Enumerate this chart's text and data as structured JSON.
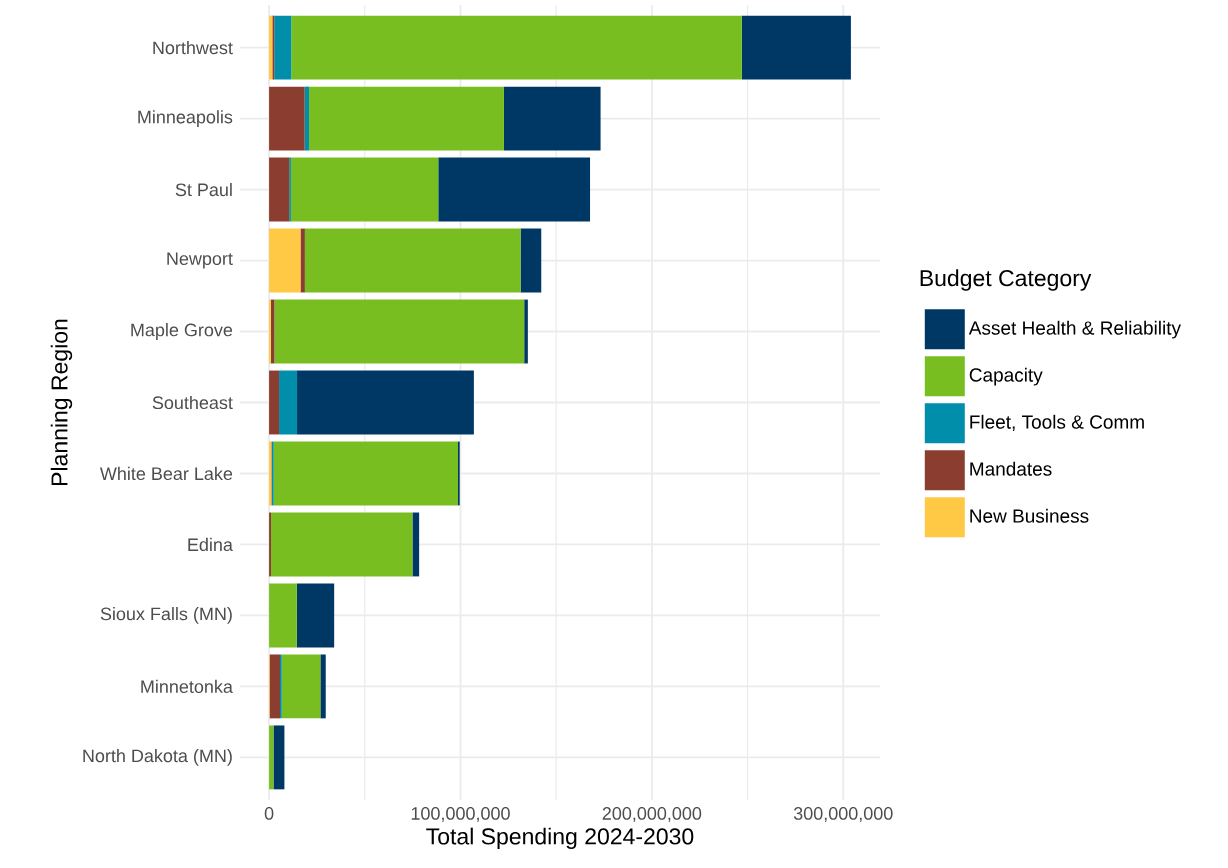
{
  "chart_data": {
    "type": "bar",
    "orientation": "horizontal",
    "stacked": true,
    "xlabel": "Total Spending 2024-2030",
    "ylabel": "Planning Region",
    "legend_title": "Budget Category",
    "categories": [
      "Northwest",
      "Minneapolis",
      "St Paul",
      "Newport",
      "Maple Grove",
      "Southeast",
      "White Bear Lake",
      "Edina",
      "Sioux Falls (MN)",
      "Minnetonka",
      "North Dakota (MN)"
    ],
    "series": [
      {
        "name": "New Business",
        "color": "#ffc845",
        "values": [
          1700000,
          0,
          0,
          16400000,
          900000,
          0,
          1200000,
          0,
          0,
          300000,
          0
        ]
      },
      {
        "name": "Mandates",
        "color": "#8b3e2f",
        "values": [
          1000000,
          18600000,
          10500000,
          2300000,
          1900000,
          5200000,
          300000,
          1000000,
          0,
          5400000,
          0
        ]
      },
      {
        "name": "Fleet, Tools & Comm",
        "color": "#008eaa",
        "values": [
          8900000,
          2300000,
          900000,
          null,
          null,
          9400000,
          900000,
          0,
          0,
          900000,
          0
        ]
      },
      {
        "name": "Capacity",
        "color": "#78be21",
        "values": [
          235400000,
          101800000,
          77000000,
          112700000,
          130500000,
          0,
          96300000,
          73900000,
          14500000,
          20200000,
          2300000
        ]
      },
      {
        "name": "Asset Health & Reliability",
        "color": "#003865",
        "values": [
          57000000,
          50500000,
          79300000,
          10800000,
          1900000,
          92400000,
          900000,
          3500000,
          19500000,
          2800000,
          5700000
        ]
      }
    ],
    "xlim": [
      -15200000,
      319200000
    ],
    "xticks": [
      0,
      {
        "value": 100000000,
        "label": "100,000,000"
      },
      {
        "value": 200000000,
        "label": "200,000,000"
      },
      {
        "value": 300000000,
        "label": "300,000,000"
      }
    ],
    "grid": true,
    "legend": "right"
  }
}
